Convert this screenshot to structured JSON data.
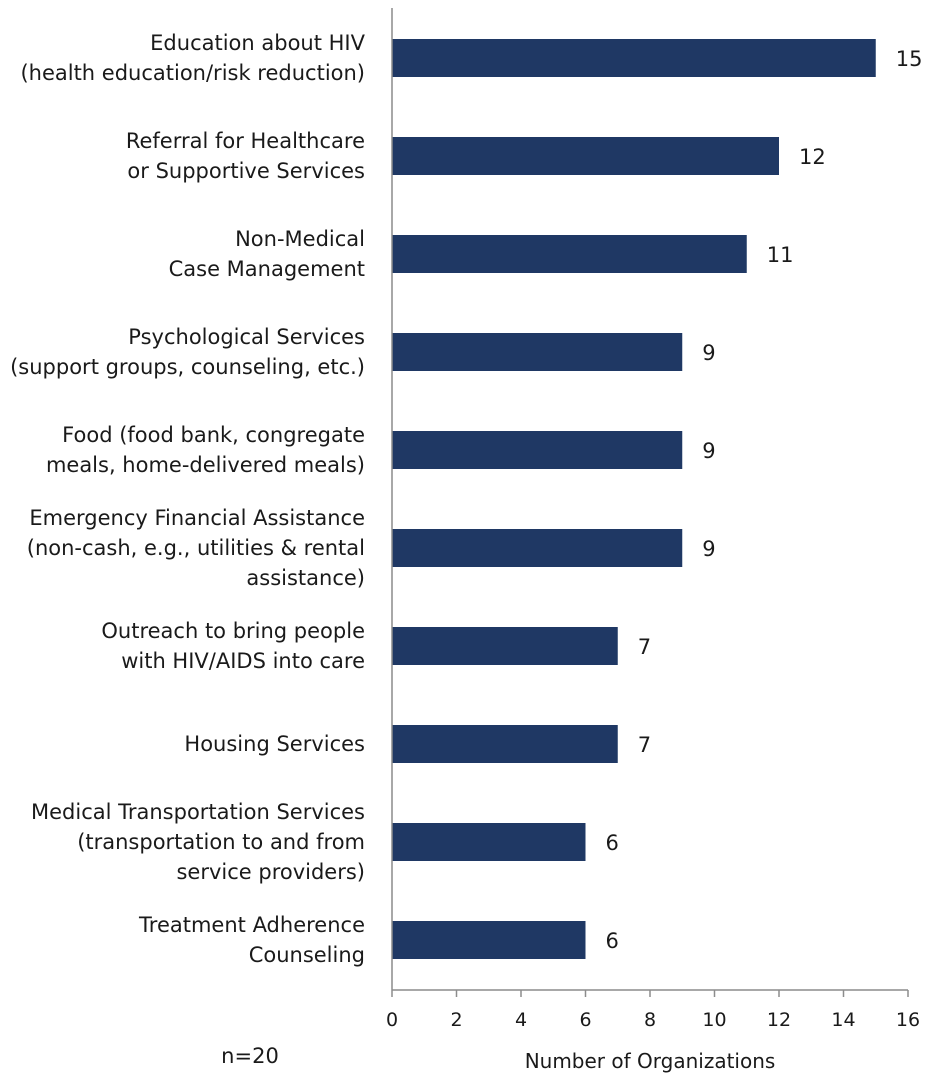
{
  "chart_data": {
    "type": "bar",
    "orientation": "horizontal",
    "categories": [
      [
        "Education about HIV",
        "(health education/risk reduction)"
      ],
      [
        "Referral for Healthcare",
        "or Supportive Services"
      ],
      [
        "Non-Medical",
        "Case Management"
      ],
      [
        "Psychological Services",
        "(support groups, counseling, etc.)"
      ],
      [
        "Food (food bank, congregate",
        "meals, home-delivered meals)"
      ],
      [
        "Emergency Financial Assistance",
        "(non-cash, e.g., utilities & rental",
        "assistance)"
      ],
      [
        "Outreach to bring people",
        "with HIV/AIDS into care"
      ],
      [
        "Housing Services"
      ],
      [
        "Medical Transportation Services",
        "(transportation to and from",
        "service providers)"
      ],
      [
        "Treatment Adherence",
        "Counseling"
      ]
    ],
    "values": [
      15,
      12,
      11,
      9,
      9,
      9,
      7,
      7,
      6,
      6
    ],
    "data_labels": [
      "15",
      "12",
      "11",
      "9",
      "9",
      "9",
      "7",
      "7",
      "6",
      "6"
    ],
    "xlabel": "Number of Organizations",
    "xlim": [
      0,
      16
    ],
    "xticks": [
      0,
      2,
      4,
      6,
      8,
      10,
      12,
      14,
      16
    ],
    "grid": false,
    "legend": "none",
    "bar_color": "#1f3864",
    "axis_color": "#8c8c8c"
  },
  "note": "n=20"
}
